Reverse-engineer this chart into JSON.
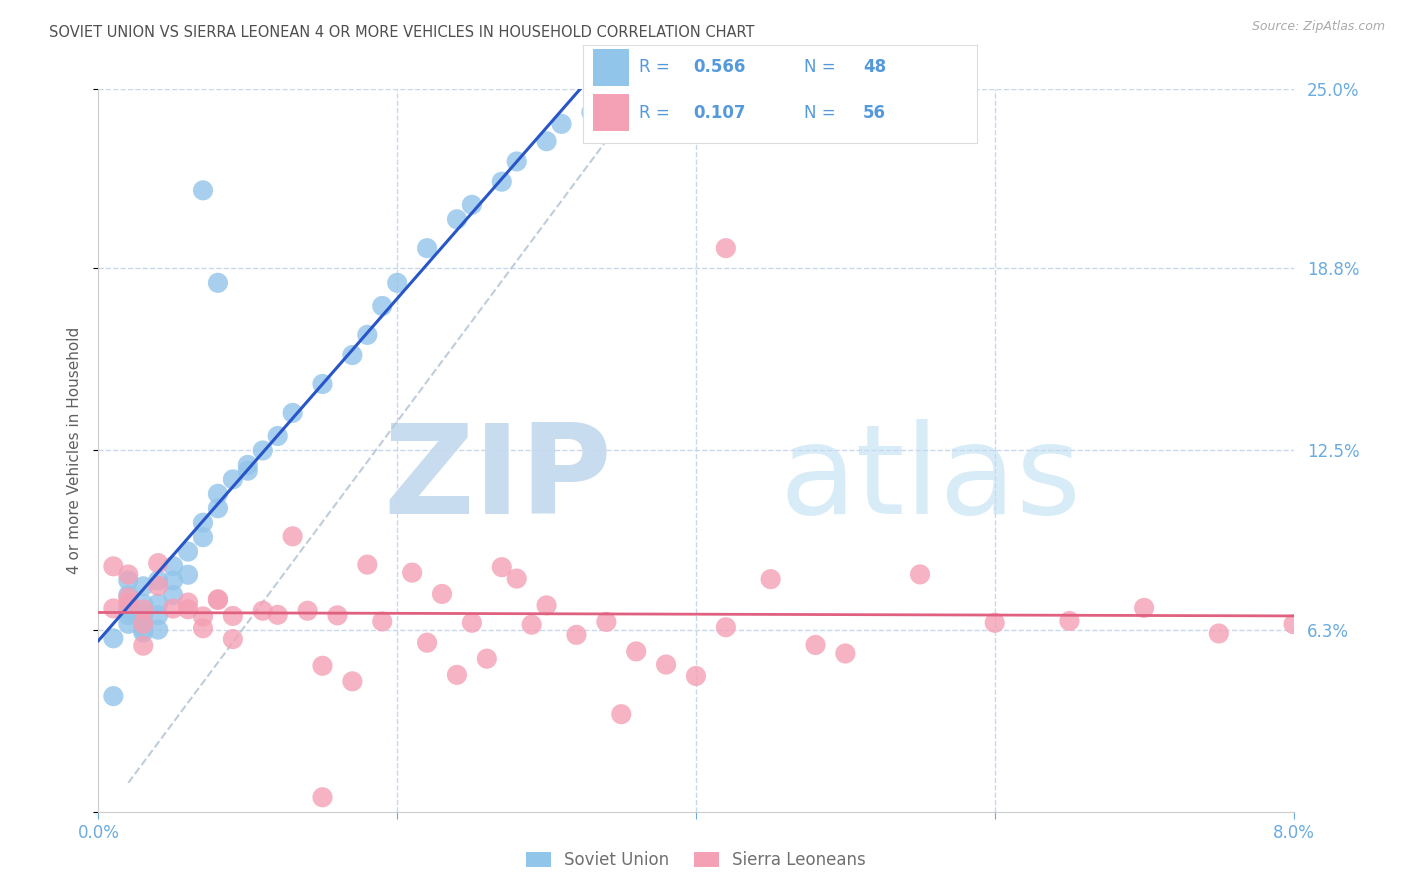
{
  "title": "SOVIET UNION VS SIERRA LEONEAN 4 OR MORE VEHICLES IN HOUSEHOLD CORRELATION CHART",
  "source": "Source: ZipAtlas.com",
  "ylabel": "4 or more Vehicles in Household",
  "xlim": [
    0.0,
    0.08
  ],
  "ylim": [
    0.0,
    0.25
  ],
  "soviet_R": 0.566,
  "soviet_N": 48,
  "sierra_R": 0.107,
  "sierra_N": 56,
  "soviet_color": "#92C5EA",
  "sierra_color": "#F4A0B5",
  "soviet_line_color": "#2855C8",
  "sierra_line_color": "#E06080",
  "ref_line_color": "#B8C8D8",
  "legend_soviet": "Soviet Union",
  "legend_sierra": "Sierra Leoneans",
  "background_color": "#FFFFFF",
  "grid_color": "#C8D8EC",
  "title_color": "#505050",
  "right_label_color": "#6AABE0",
  "axis_color": "#6AABE0",
  "watermark_zip_color": "#C8DCF0",
  "watermark_atlas_color": "#D8ECF8",
  "right_yticks": [
    0.0,
    0.063,
    0.125,
    0.188,
    0.25
  ],
  "right_ytick_labels": [
    "",
    "6.3%",
    "12.5%",
    "18.8%",
    "25.0%"
  ],
  "legend_R_color": "#5599DD",
  "legend_N_color": "#5599DD"
}
